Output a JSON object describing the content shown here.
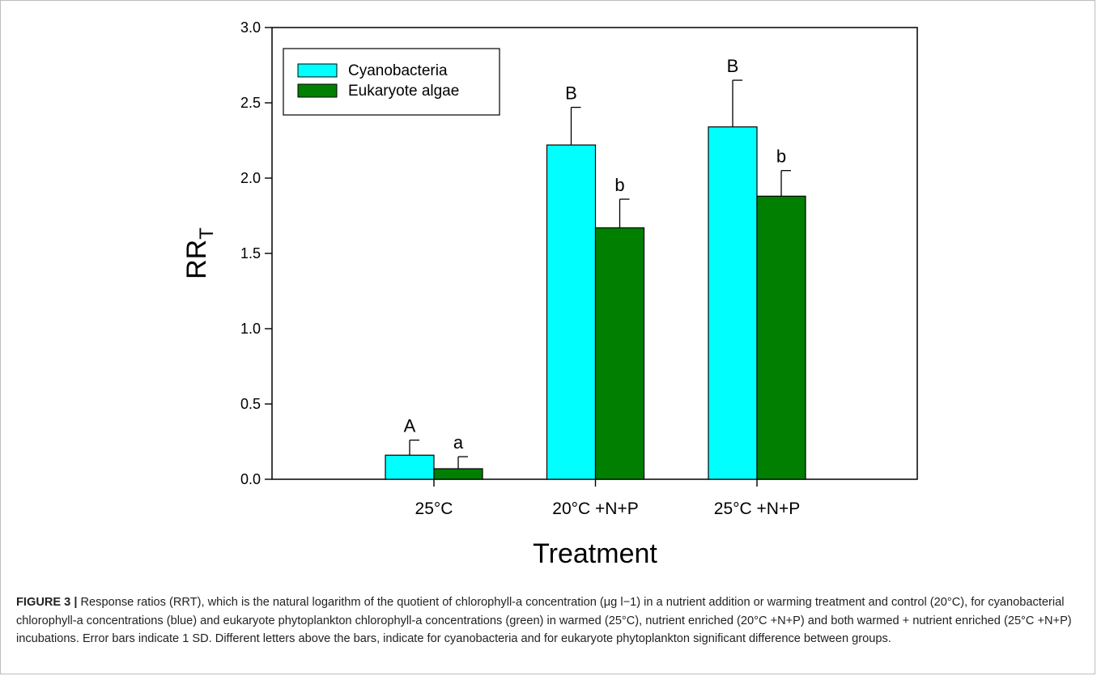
{
  "chart_data": {
    "type": "bar",
    "categories": [
      "25°C",
      "20°C +N+P",
      "25°C +N+P"
    ],
    "series": [
      {
        "name": "Cyanobacteria",
        "color": "#00ffff",
        "values": [
          0.16,
          2.22,
          2.34
        ],
        "errors": [
          0.1,
          0.25,
          0.31
        ],
        "letters": [
          "A",
          "B",
          "B"
        ]
      },
      {
        "name": "Eukaryote algae",
        "color": "#007f00",
        "values": [
          0.07,
          1.67,
          1.88
        ],
        "errors": [
          0.08,
          0.19,
          0.17
        ],
        "letters": [
          "a",
          "b",
          "b"
        ]
      }
    ],
    "xlabel": "Treatment",
    "ylabel_main": "RR",
    "ylabel_sub": "T",
    "ylim": [
      0,
      3.0
    ],
    "yticks": [
      "0.0",
      "0.5",
      "1.0",
      "1.5",
      "2.0",
      "2.5",
      "3.0"
    ],
    "legend_position": "top-left",
    "grid": false
  },
  "caption": {
    "label": "FIGURE 3 |",
    "text": "Response ratios (RRT), which is the natural logarithm of the quotient of chlorophyll-a concentration (μg l−1) in a nutrient addition or warming treatment and control (20°C), for cyanobacterial chlorophyll-a concentrations (blue) and eukaryote phytoplankton chlorophyll-a concentrations (green) in warmed (25°C), nutrient enriched (20°C +N+P) and both warmed + nutrient enriched (25°C +N+P) incubations. Error bars indicate 1 SD. Different letters above the bars, indicate for cyanobacteria and for eukaryote phytoplankton significant difference between groups."
  }
}
